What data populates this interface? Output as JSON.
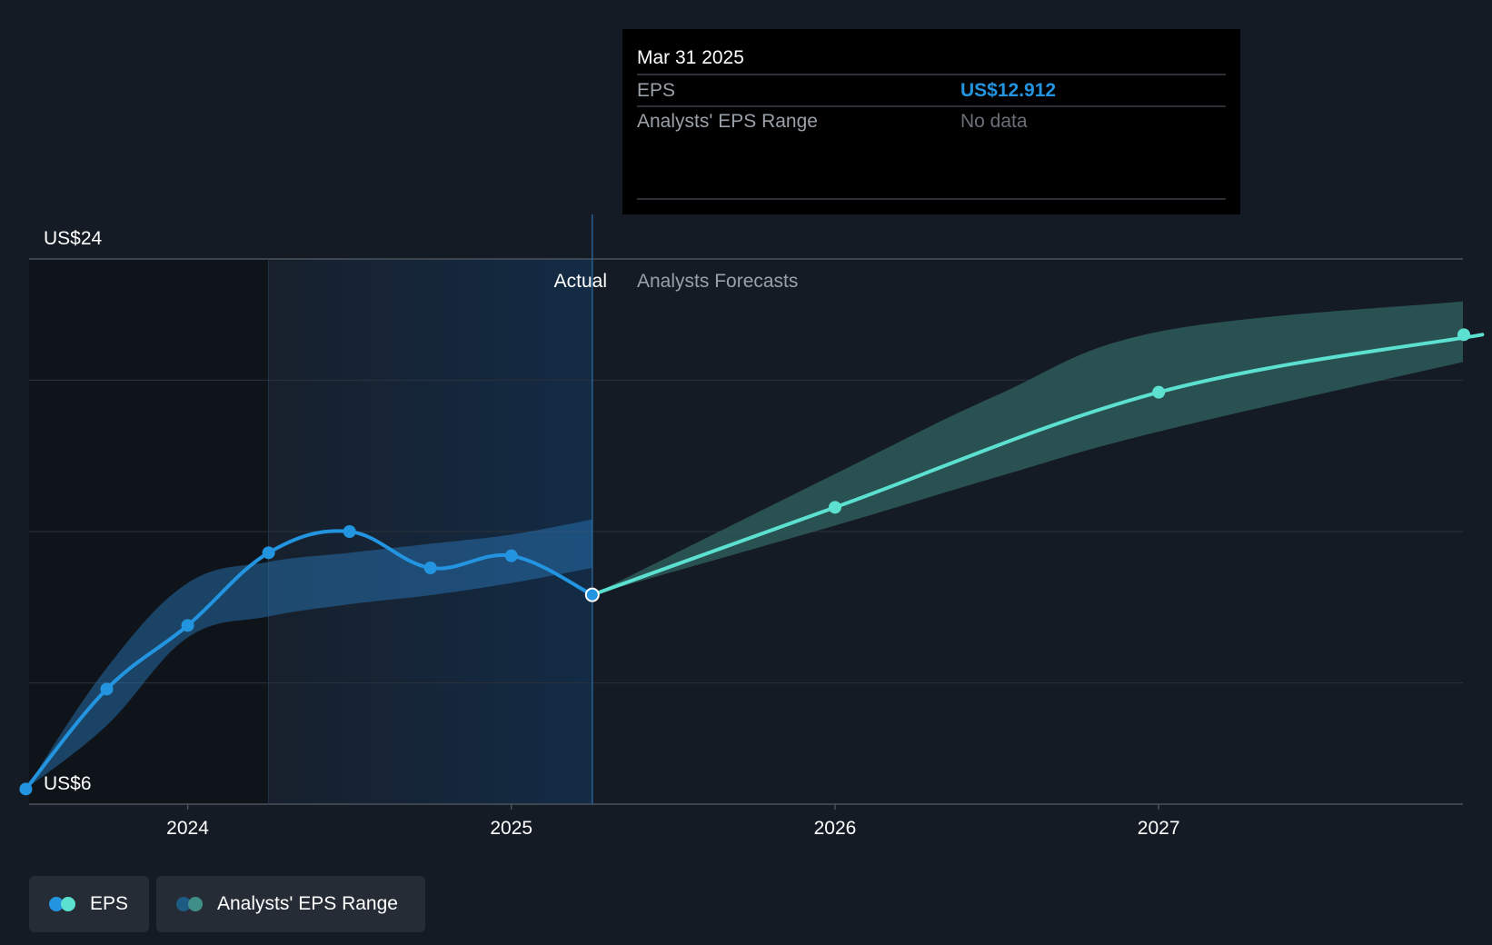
{
  "tooltip": {
    "date": "Mar 31 2025",
    "rows": [
      {
        "label": "EPS",
        "value": "US$12.912"
      },
      {
        "label": "Analysts' EPS Range",
        "value": "No data"
      }
    ]
  },
  "regions": {
    "actual_label": "Actual",
    "forecast_label": "Analysts Forecasts"
  },
  "legend": [
    {
      "label": "EPS",
      "colors": [
        "#2394df",
        "#5ce1d0"
      ]
    },
    {
      "label": "Analysts' EPS Range",
      "colors": [
        "#1e5b82",
        "#3f8f88"
      ]
    }
  ],
  "colors": {
    "background": "#151b24",
    "actual_line": "#2394df",
    "forecast_line": "#5ce1d0",
    "actual_band": "#2a7cc0",
    "forecast_band": "#2e5a5a",
    "tooltip_value": "#2394df"
  },
  "chart_data": {
    "type": "line",
    "y_axis": {
      "min": 6,
      "max": 24,
      "tick_labels": [
        "US$24",
        "US$6"
      ],
      "gridlines": [
        6,
        10,
        15,
        20,
        24
      ]
    },
    "x_axis": {
      "ticks": [
        2024,
        2025,
        2026,
        2027
      ],
      "range": [
        2023.51,
        2027.94
      ]
    },
    "series": [
      {
        "name": "EPS",
        "kind": "actual",
        "x": [
          2023.5,
          2023.75,
          2024.0,
          2024.25,
          2024.5,
          2024.75,
          2025.0,
          2025.25
        ],
        "y": [
          6.5,
          9.8,
          11.9,
          14.3,
          15.0,
          13.8,
          14.2,
          12.912
        ]
      },
      {
        "name": "EPS",
        "kind": "forecast",
        "x": [
          2025.25,
          2026.0,
          2027.0,
          2028.0
        ],
        "y": [
          12.912,
          15.8,
          19.6,
          21.5
        ]
      }
    ],
    "ranges": [
      {
        "kind": "actual",
        "x": [
          2023.5,
          2023.75,
          2024.0,
          2024.25,
          2024.5,
          2024.75,
          2025.0,
          2025.25
        ],
        "low": [
          6.5,
          8.6,
          11.5,
          12.2,
          12.6,
          12.9,
          13.3,
          13.8
        ],
        "high": [
          6.5,
          10.5,
          13.3,
          14.0,
          14.3,
          14.6,
          14.9,
          15.4
        ]
      },
      {
        "kind": "forecast",
        "x": [
          2025.25,
          2026.0,
          2026.5,
          2027.0,
          2027.94
        ],
        "low": [
          12.912,
          15.2,
          16.8,
          18.3,
          20.6
        ],
        "high": [
          12.912,
          16.9,
          19.5,
          21.6,
          22.6
        ]
      }
    ]
  }
}
